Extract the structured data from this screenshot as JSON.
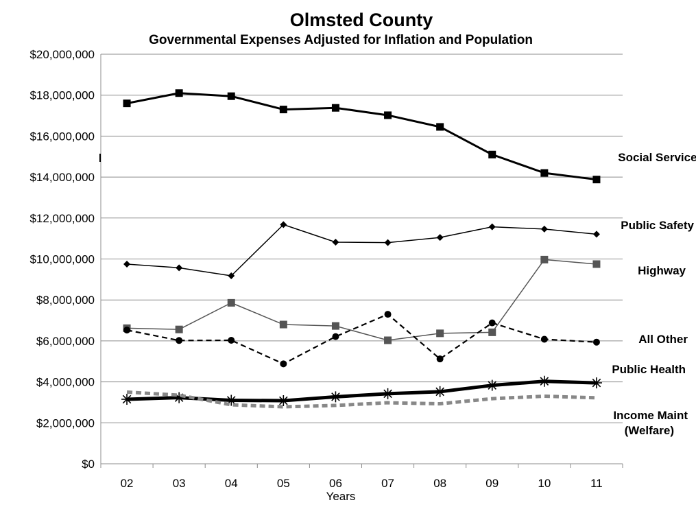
{
  "chart_data": {
    "type": "line",
    "title": "Olmsted County",
    "subtitle": "Governmental Expenses Adjusted for Inflation and Population",
    "xlabel": "Years",
    "ylabel": "",
    "categories": [
      "02",
      "03",
      "04",
      "05",
      "06",
      "07",
      "08",
      "09",
      "10",
      "11"
    ],
    "ylim": [
      0,
      20000000
    ],
    "y_ticks": [
      0,
      2000000,
      4000000,
      6000000,
      8000000,
      10000000,
      12000000,
      14000000,
      16000000,
      18000000,
      20000000
    ],
    "y_tick_labels": [
      "$0",
      "$2,000,000",
      "$4,000,000",
      "$6,000,000",
      "$8,000,000",
      "$10,000,000",
      "$12,000,000",
      "$14,000,000",
      "$16,000,000",
      "$18,000,000",
      "$20,000,000"
    ],
    "grid": "horizontal",
    "legend": "direct labels at right",
    "series": [
      {
        "name": "Social Services",
        "label_lines": [
          "Social Services"
        ],
        "color": "#000000",
        "marker": "square",
        "dash": "solid",
        "width": "thick",
        "values": [
          17600000,
          18100000,
          17950000,
          17300000,
          17380000,
          17020000,
          16450000,
          15100000,
          14200000,
          13880000
        ]
      },
      {
        "name": "Public Safety",
        "label_lines": [
          "Public Safety"
        ],
        "color": "#000000",
        "marker": "diamond",
        "dash": "solid",
        "width": "thin",
        "values": [
          9750000,
          9570000,
          9180000,
          11680000,
          10820000,
          10800000,
          11050000,
          11570000,
          11460000,
          11210000
        ]
      },
      {
        "name": "Highway",
        "label_lines": [
          "Highway"
        ],
        "color": "#555555",
        "marker": "square",
        "dash": "solid",
        "width": "thin",
        "values": [
          6620000,
          6560000,
          7860000,
          6800000,
          6730000,
          6030000,
          6370000,
          6420000,
          9970000,
          9750000
        ]
      },
      {
        "name": "All Other",
        "label_lines": [
          "All Other"
        ],
        "color": "#000000",
        "marker": "circle",
        "dash": "dashed",
        "width": "medium",
        "values": [
          6530000,
          6020000,
          6030000,
          4880000,
          6210000,
          7300000,
          5120000,
          6880000,
          6080000,
          5940000
        ]
      },
      {
        "name": "Public Health",
        "label_lines": [
          "Public Health"
        ],
        "color": "#000000",
        "marker": "star",
        "dash": "solid",
        "width": "heavy",
        "values": [
          3150000,
          3230000,
          3100000,
          3080000,
          3270000,
          3420000,
          3520000,
          3830000,
          4030000,
          3950000
        ]
      },
      {
        "name": "Income Maint (Welfare)",
        "label_lines": [
          "Income Maint",
          "(Welfare)"
        ],
        "color": "#888888",
        "marker": "none",
        "dash": "dashed",
        "width": "heavy",
        "values": [
          3500000,
          3350000,
          2880000,
          2780000,
          2850000,
          2980000,
          2930000,
          3180000,
          3300000,
          3220000
        ]
      }
    ]
  }
}
